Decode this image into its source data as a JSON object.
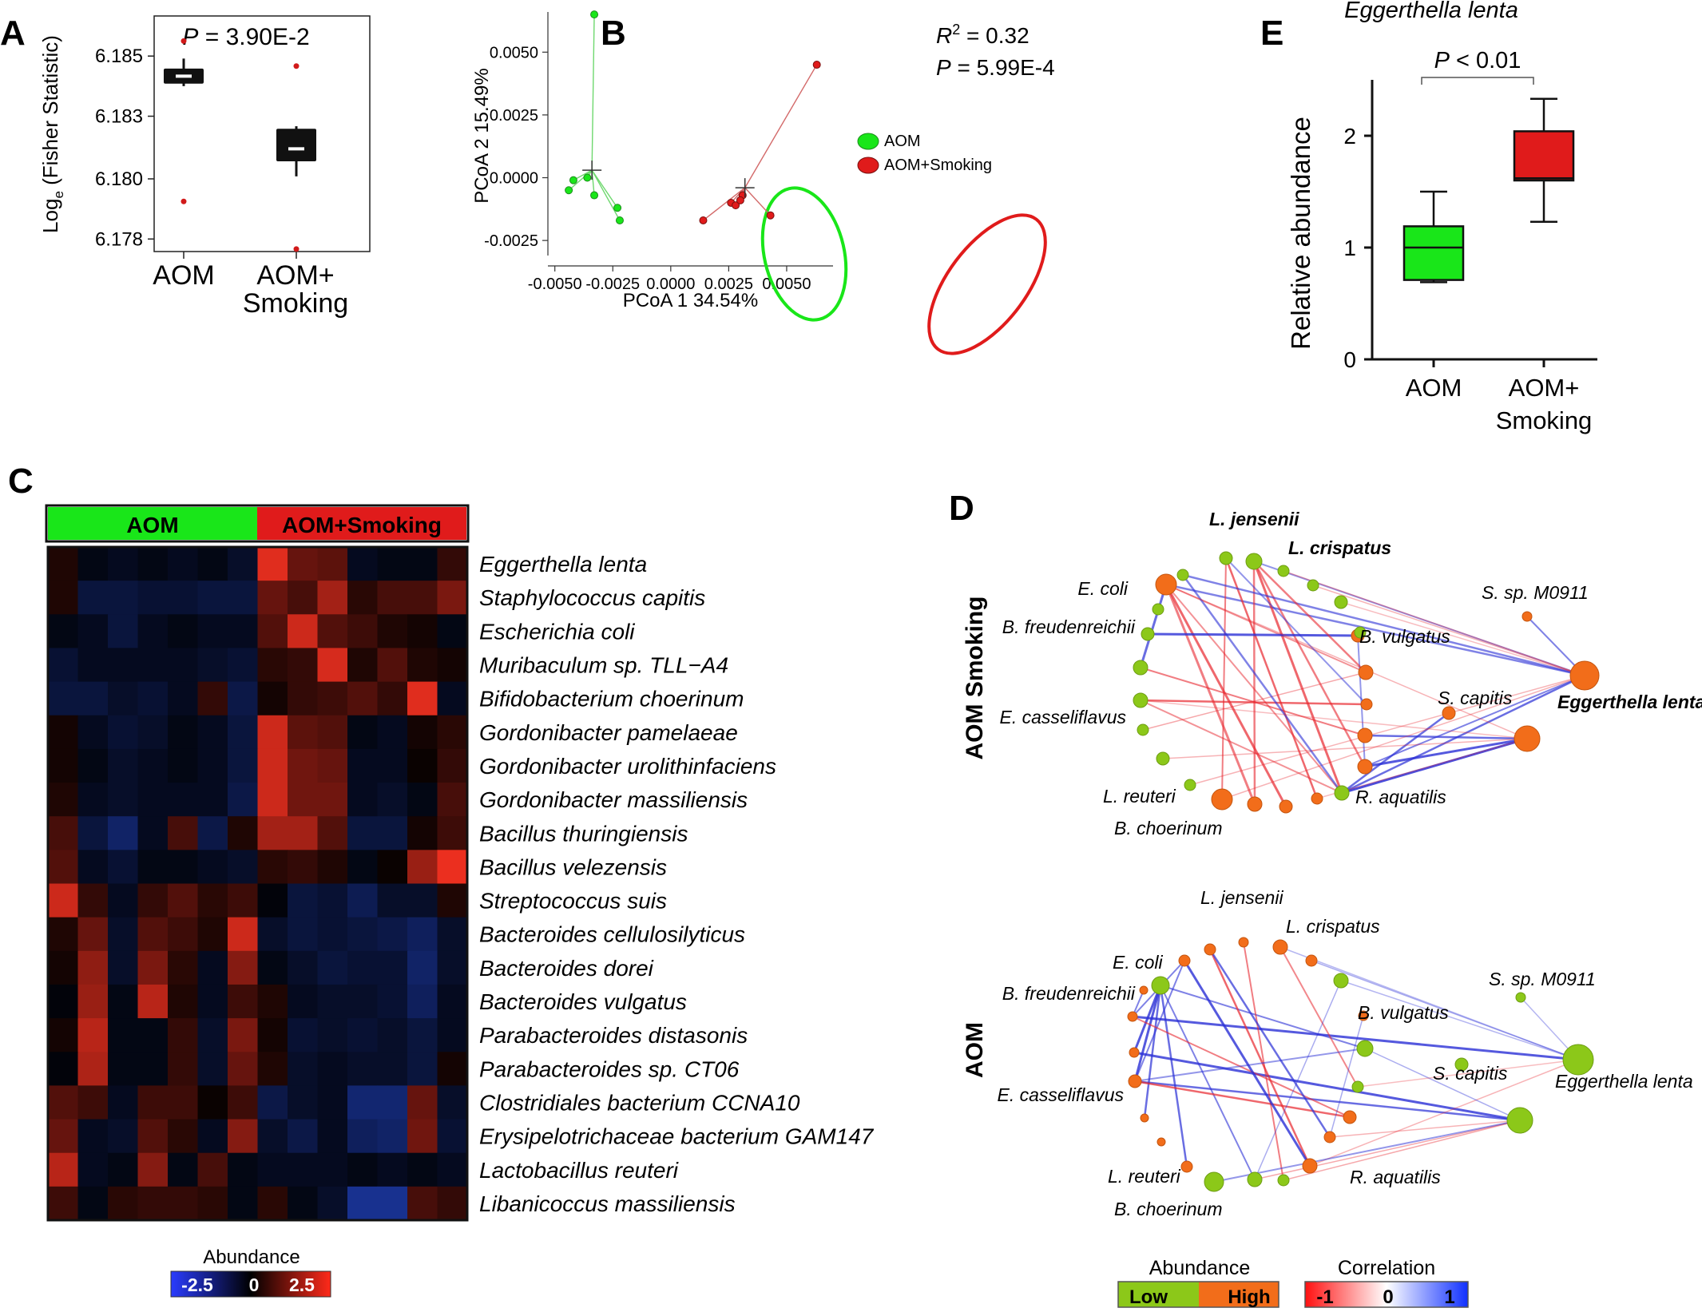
{
  "panel_letters": [
    "A",
    "B",
    "C",
    "D",
    "E"
  ],
  "colors": {
    "aom_green": "#19e619",
    "smoking_red": "#e01b1b",
    "box_black": "#111111",
    "outlier_red": "#d11a1a",
    "node_green": "#8cc819",
    "node_orange": "#f26d1a",
    "corr_neg": "#e8262e",
    "corr_pos": "#2a2fd6",
    "heat_neg": "#2a57ff",
    "heat_zero": "#000000",
    "heat_pos": "#ff3322"
  },
  "chart_data": [
    {
      "panel": "A",
      "type": "box",
      "annotation": "P = 3.90E-2",
      "annotation_p": "P",
      "annotation_rest": " = 3.90E-2",
      "ylabel_main": "Log",
      "ylabel_sub": "e",
      "ylabel_rest": " (Fisher Statistic)",
      "ylim": [
        6.1772,
        6.1866
      ],
      "yticks": [
        "6.185",
        "6.183",
        "6.180",
        "6.178"
      ],
      "ytick_values": [
        6.185,
        6.1826,
        6.1801,
        6.1777
      ],
      "categories": [
        "AOM",
        "AOM+\nSmoking"
      ],
      "category_lines": [
        [
          "AOM"
        ],
        [
          "AOM+",
          "Smoking"
        ]
      ],
      "boxes": [
        {
          "category": "AOM",
          "whisker_low": 6.1838,
          "q1": 6.1839,
          "median": 6.1842,
          "q3": 6.1845,
          "whisker_high": 6.1849,
          "outliers": [
            6.1856,
            6.1792
          ]
        },
        {
          "category": "AOM+Smoking",
          "whisker_low": 6.1802,
          "q1": 6.1808,
          "median": 6.1813,
          "q3": 6.1821,
          "whisker_high": 6.1822,
          "outliers": [
            6.1846,
            6.1773
          ]
        }
      ]
    },
    {
      "panel": "B",
      "type": "scatter",
      "stat_r2_label": "R",
      "stat_r2_sup": "2",
      "stat_r2_value": " = 0.32",
      "stat_p_label": "P",
      "stat_p_value": " = 5.99E-4",
      "xlabel": "PCoA 1 34.54%",
      "ylabel": "PCoA 2 15.49%",
      "xlim": [
        -0.0053,
        0.007
      ],
      "ylim": [
        -0.0031,
        0.0066
      ],
      "xticks": [
        "-0.0050",
        "-0.0025",
        "0.0000",
        "0.0025",
        "0.0050"
      ],
      "xtick_values": [
        -0.005,
        -0.0025,
        0.0,
        0.0025,
        0.005
      ],
      "yticks": [
        "0.0050",
        "0.0025",
        "0.0000",
        "-0.0025"
      ],
      "ytick_values": [
        0.005,
        0.0025,
        0.0,
        -0.0025
      ],
      "legend": [
        "AOM",
        "AOM+Smoking"
      ],
      "series": [
        {
          "name": "AOM",
          "centroid": [
            -0.0034,
            0.0003
          ],
          "points": [
            [
              -0.0033,
              0.0065
            ],
            [
              -0.0044,
              -0.0005
            ],
            [
              -0.0042,
              -0.0001
            ],
            [
              -0.0036,
              0.0
            ],
            [
              -0.0033,
              -0.0007
            ],
            [
              -0.0023,
              -0.0012
            ],
            [
              -0.0022,
              -0.0017
            ]
          ]
        },
        {
          "name": "AOM+Smoking",
          "centroid": [
            0.0032,
            -0.0004
          ],
          "points": [
            [
              0.0063,
              0.0045
            ],
            [
              0.0026,
              -0.001
            ],
            [
              0.0028,
              -0.0011
            ],
            [
              0.0031,
              -0.0007
            ],
            [
              0.0043,
              -0.0015
            ],
            [
              0.0014,
              -0.0017
            ],
            [
              0.003,
              -0.0009
            ]
          ]
        }
      ]
    },
    {
      "panel": "D",
      "type": "box",
      "title": "Eggerthella lenta",
      "annotation": "P < 0.01",
      "annotation_p": "P",
      "annotation_rest": " < 0.01",
      "ylabel": "Relative abundance",
      "ylim": [
        0,
        2.5
      ],
      "yticks": [
        "0",
        "1",
        "2"
      ],
      "ytick_values": [
        0,
        1,
        2
      ],
      "categories": [
        "AOM",
        "AOM+\nSmoking"
      ],
      "category_lines": [
        [
          "AOM"
        ],
        [
          "AOM+",
          "Smoking"
        ]
      ],
      "boxes": [
        {
          "category": "AOM",
          "whisker_low": 0.69,
          "q1": 0.71,
          "median": 1.0,
          "q3": 1.19,
          "whisker_high": 1.5
        },
        {
          "category": "AOM+Smoking",
          "whisker_low": 1.23,
          "q1": 1.6,
          "median": 1.62,
          "q3": 2.04,
          "whisker_high": 2.33
        }
      ]
    },
    {
      "panel": "C",
      "type": "heatmap",
      "group_labels": [
        "AOM",
        "AOM+Smoking"
      ],
      "legend_title": "Abundance",
      "legend_ticks": [
        "-2.5",
        "0",
        "2.5"
      ],
      "value_range": [
        -2.5,
        2.5
      ],
      "rows": [
        "Eggerthella lenta",
        "Staphylococcus capitis",
        "Escherichia coli",
        "Muribaculum sp. TLL−A4",
        "Bifidobacterium choerinum",
        "Gordonibacter pamelaeae",
        "Gordonibacter urolithinfaciens",
        "Gordonibacter massiliensis",
        "Bacillus thuringiensis",
        "Bacillus velezensis",
        "Streptococcus suis",
        "Bacteroides cellulosilyticus",
        "Bacteroides dorei",
        "Bacteroides vulgatus",
        "Parabacteroides distasonis",
        "Parabacteroides sp. CT06",
        "Clostridiales bacterium CCNA10",
        "Erysipelotrichaceae bacterium GAM147",
        "Lactobacillus reuteri",
        "Libanicoccus massiliensis"
      ],
      "values": [
        [
          0.3,
          -0.2,
          -0.3,
          -0.2,
          -0.3,
          -0.2,
          -0.4,
          2.2,
          1.0,
          0.9,
          -0.3,
          -0.2,
          -0.2,
          0.5
        ],
        [
          0.3,
          -0.6,
          -0.6,
          -0.5,
          -0.5,
          -0.6,
          -0.6,
          1.0,
          0.7,
          1.6,
          0.4,
          0.7,
          0.7,
          1.2
        ],
        [
          -0.2,
          -0.3,
          -0.6,
          -0.3,
          -0.2,
          -0.3,
          -0.3,
          0.8,
          2.0,
          0.8,
          0.6,
          0.3,
          0.2,
          -0.2
        ],
        [
          -0.5,
          -0.3,
          -0.3,
          -0.3,
          -0.3,
          -0.4,
          -0.5,
          0.4,
          0.5,
          2.1,
          0.3,
          0.8,
          0.3,
          0.2
        ],
        [
          -0.6,
          -0.6,
          -0.4,
          -0.5,
          -0.3,
          0.5,
          -0.7,
          0.2,
          0.5,
          0.6,
          0.8,
          0.5,
          2.2,
          -0.3
        ],
        [
          0.2,
          -0.3,
          -0.5,
          -0.4,
          -0.2,
          -0.3,
          -0.6,
          2.0,
          0.9,
          0.8,
          -0.2,
          -0.3,
          0.2,
          0.4
        ],
        [
          0.2,
          -0.2,
          -0.4,
          -0.3,
          -0.2,
          -0.3,
          -0.6,
          2.0,
          1.1,
          1.0,
          -0.3,
          -0.3,
          0.1,
          0.5
        ],
        [
          0.3,
          -0.3,
          -0.4,
          -0.3,
          -0.3,
          -0.3,
          -0.7,
          2.0,
          1.1,
          1.1,
          -0.3,
          -0.4,
          -0.2,
          0.7
        ],
        [
          0.7,
          -0.6,
          -1.0,
          -0.3,
          0.7,
          -0.7,
          0.3,
          1.6,
          1.6,
          0.8,
          -0.6,
          -0.6,
          0.2,
          0.6
        ],
        [
          0.8,
          -0.3,
          -0.5,
          -0.2,
          -0.2,
          -0.3,
          -0.4,
          0.4,
          0.5,
          0.3,
          -0.2,
          0.1,
          1.5,
          2.3
        ],
        [
          2.0,
          0.5,
          -0.3,
          0.5,
          0.8,
          0.4,
          0.6,
          -0.1,
          -0.6,
          -0.5,
          -0.8,
          -0.4,
          -0.4,
          0.3
        ],
        [
          0.3,
          1.0,
          -0.4,
          0.8,
          0.6,
          0.3,
          2.0,
          -0.4,
          -0.6,
          -0.5,
          -0.6,
          -0.7,
          -0.9,
          -0.4
        ],
        [
          0.2,
          1.4,
          -0.4,
          1.2,
          0.4,
          -0.3,
          1.3,
          -0.2,
          -0.4,
          -0.6,
          -0.5,
          -0.5,
          -1.0,
          -0.4
        ],
        [
          -0.1,
          1.5,
          -0.2,
          1.8,
          0.3,
          -0.3,
          0.6,
          0.3,
          -0.3,
          -0.4,
          -0.4,
          -0.5,
          -0.9,
          -0.3
        ],
        [
          0.2,
          1.8,
          -0.2,
          -0.2,
          0.5,
          -0.4,
          1.2,
          0.2,
          -0.5,
          -0.4,
          -0.5,
          -0.4,
          -0.6,
          -0.3
        ],
        [
          -0.1,
          1.7,
          -0.2,
          -0.2,
          0.5,
          -0.4,
          1.0,
          0.3,
          -0.4,
          -0.3,
          -0.4,
          -0.4,
          -0.6,
          0.2
        ],
        [
          0.8,
          0.6,
          -0.3,
          0.6,
          0.6,
          0.1,
          0.6,
          -0.7,
          -0.4,
          -0.3,
          -1.1,
          -1.1,
          1.0,
          -0.4
        ],
        [
          1.0,
          -0.3,
          -0.4,
          0.8,
          0.4,
          -0.3,
          1.3,
          -0.4,
          -0.7,
          -0.3,
          -0.9,
          -1.0,
          1.1,
          -0.5
        ],
        [
          1.8,
          -0.3,
          -0.2,
          1.3,
          -0.2,
          0.7,
          -0.2,
          -0.3,
          -0.3,
          -0.3,
          -0.2,
          -0.3,
          -0.2,
          -0.3
        ],
        [
          0.6,
          -0.2,
          0.4,
          0.5,
          0.5,
          0.4,
          -0.2,
          0.4,
          -0.2,
          -0.4,
          -1.4,
          -1.4,
          0.7,
          0.5
        ]
      ]
    },
    {
      "panel": "E",
      "type": "network",
      "legend_abundance_title": "Abundance",
      "legend_abundance_labels": [
        "Low",
        "High"
      ],
      "legend_correlation_title": "Correlation",
      "legend_correlation_ticks": [
        "-1",
        "0",
        "1"
      ],
      "networks": [
        {
          "name": "AOM Smoking",
          "labels": [
            {
              "text": "L. jensenii",
              "bold": true
            },
            {
              "text": "L. crispatus",
              "bold": true
            },
            {
              "text": "E. coli",
              "bold": false
            },
            {
              "text": "S. sp. M0911",
              "bold": false
            },
            {
              "text": "B. freudenreichii",
              "bold": false
            },
            {
              "text": "B. vulgatus",
              "bold": false
            },
            {
              "text": "S. capitis",
              "bold": false
            },
            {
              "text": "Eggerthella lenta",
              "bold": true
            },
            {
              "text": "E. casseliflavus",
              "bold": false
            },
            {
              "text": "L. reuteri",
              "bold": false
            },
            {
              "text": "R. aquatilis",
              "bold": false
            },
            {
              "text": "B. choerinum",
              "bold": false
            }
          ]
        },
        {
          "name": "AOM",
          "labels": [
            {
              "text": "L. jensenii",
              "bold": false
            },
            {
              "text": "L. crispatus",
              "bold": false
            },
            {
              "text": "E. coli",
              "bold": false
            },
            {
              "text": "S. sp. M0911",
              "bold": false
            },
            {
              "text": "B. freudenreichii",
              "bold": false
            },
            {
              "text": "B. vulgatus",
              "bold": false
            },
            {
              "text": "S. capitis",
              "bold": false
            },
            {
              "text": "Eggerthella lenta",
              "bold": false
            },
            {
              "text": "E. casseliflavus",
              "bold": false
            },
            {
              "text": "L. reuteri",
              "bold": false
            },
            {
              "text": "R. aquatilis",
              "bold": false
            },
            {
              "text": "B. choerinum",
              "bold": false
            }
          ]
        }
      ]
    }
  ]
}
